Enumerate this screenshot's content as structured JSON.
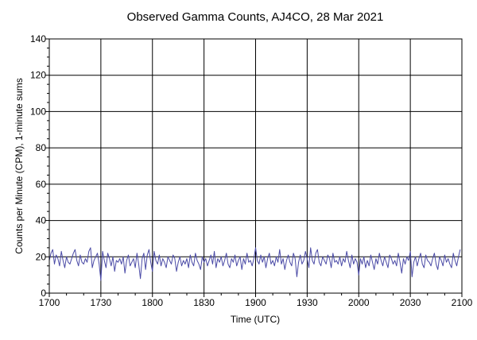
{
  "chart_data": {
    "type": "line",
    "title": "Observed Gamma Counts, AJ4CO, 28 Mar 2021",
    "xlabel": "Time (UTC)",
    "ylabel": "Counts per Minute (CPM), 1-minute sums",
    "x_tick_labels": [
      "1700",
      "1730",
      "1800",
      "1830",
      "1900",
      "1930",
      "2000",
      "2030",
      "2100"
    ],
    "y_ticks": [
      0,
      20,
      40,
      60,
      80,
      100,
      120,
      140
    ],
    "ylim": [
      0,
      140
    ],
    "x_start": "17:00",
    "x_end": "21:00",
    "x_step_minutes": 1,
    "grid": true,
    "line_color": "#4a4aa6",
    "values": [
      18,
      22,
      24,
      16,
      21,
      19,
      15,
      23,
      18,
      14,
      20,
      17,
      16,
      19,
      22,
      24,
      18,
      15,
      21,
      17,
      16,
      19,
      17,
      23,
      25,
      14,
      18,
      20,
      22,
      16,
      7,
      23,
      18,
      14,
      22,
      19,
      15,
      20,
      12,
      18,
      17,
      19,
      16,
      20,
      11,
      18,
      21,
      15,
      17,
      19,
      14,
      22,
      16,
      8,
      19,
      22,
      13,
      21,
      24,
      17,
      12,
      23,
      18,
      16,
      21,
      15,
      19,
      17,
      14,
      20,
      18,
      16,
      21,
      19,
      12,
      17,
      20,
      15,
      18,
      16,
      19,
      14,
      21,
      17,
      15,
      22,
      18,
      16,
      13,
      20,
      17,
      19,
      15,
      18,
      21,
      16,
      23,
      14,
      19,
      17,
      20,
      15,
      18,
      22,
      16,
      14,
      19,
      17,
      21,
      15,
      18,
      20,
      13,
      19,
      16,
      22,
      17,
      18,
      15,
      19,
      25,
      18,
      16,
      21,
      17,
      20,
      14,
      19,
      22,
      16,
      18,
      15,
      20,
      17,
      24,
      16,
      19,
      13,
      18,
      21,
      17,
      15,
      22,
      19,
      9,
      17,
      21,
      16,
      18,
      23,
      19,
      14,
      25,
      18,
      16,
      22,
      24,
      17,
      15,
      20,
      18,
      16,
      21,
      19,
      14,
      22,
      17,
      18,
      16,
      20,
      15,
      19,
      17,
      23,
      18,
      14,
      21,
      16,
      19,
      17,
      10,
      19,
      16,
      20,
      14,
      18,
      15,
      21,
      17,
      13,
      19,
      16,
      22,
      18,
      15,
      20,
      17,
      14,
      21,
      19,
      16,
      18,
      15,
      22,
      17,
      11,
      19,
      16,
      20,
      18,
      23,
      9,
      17,
      20,
      15,
      19,
      22,
      16,
      14,
      21,
      18,
      17,
      15,
      19,
      22,
      16,
      13,
      20,
      18,
      15,
      21,
      17,
      19,
      16,
      14,
      22,
      18,
      15,
      20,
      24
    ]
  }
}
